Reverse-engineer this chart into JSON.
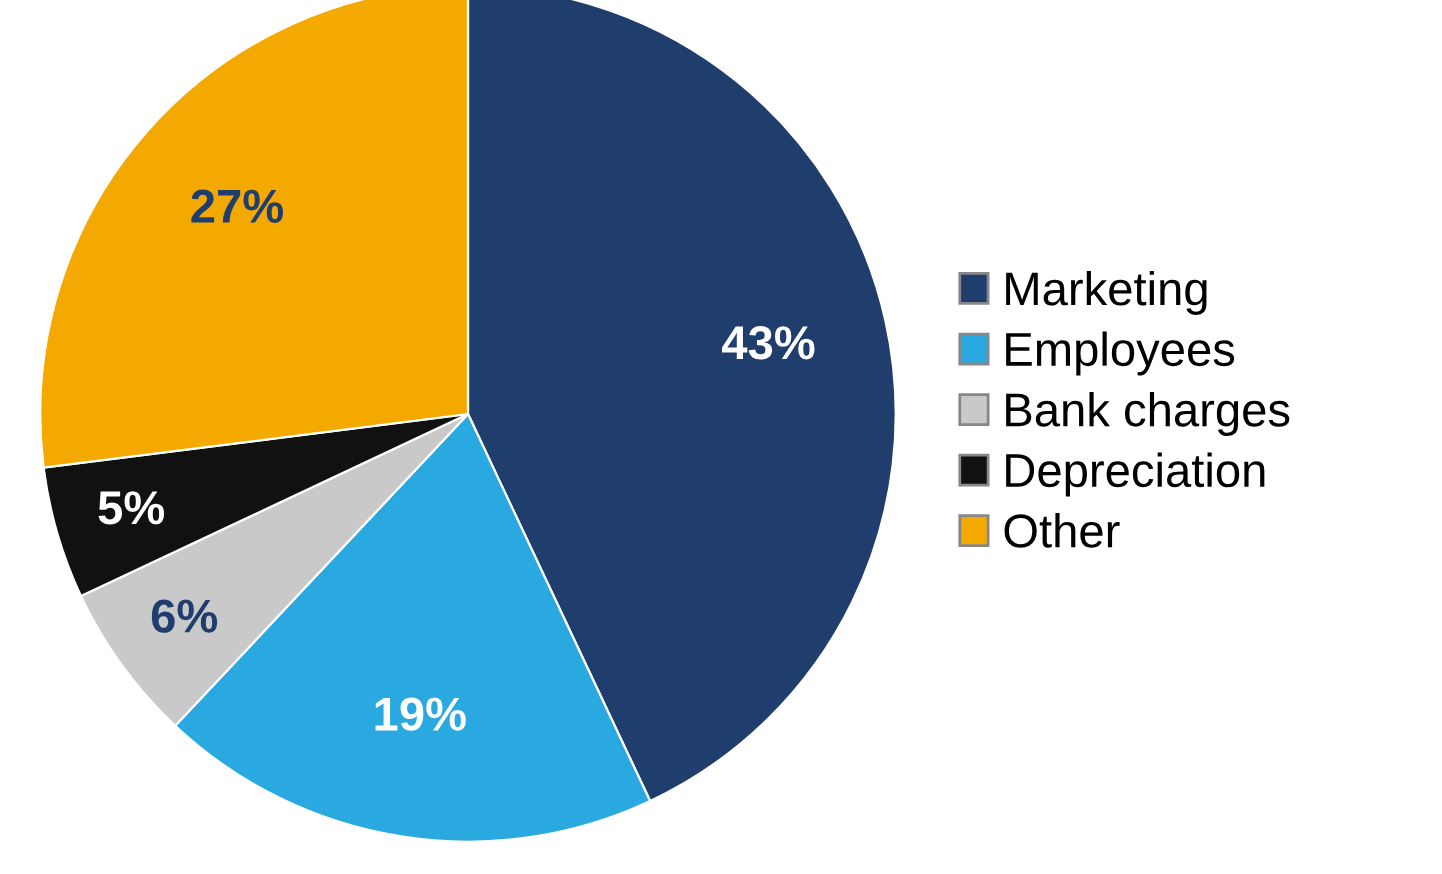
{
  "chart_data": {
    "type": "pie",
    "categories": [
      "Marketing",
      "Employees",
      "Bank charges",
      "Depreciation",
      "Other"
    ],
    "values": [
      43,
      19,
      6,
      5,
      27
    ],
    "colors": [
      "#1f3d6d",
      "#2aa8e0",
      "#c9c9c9",
      "#111111",
      "#f4a900"
    ],
    "value_labels": [
      "43%",
      "19%",
      "6%",
      "5%",
      "27%"
    ],
    "legend": "right"
  }
}
